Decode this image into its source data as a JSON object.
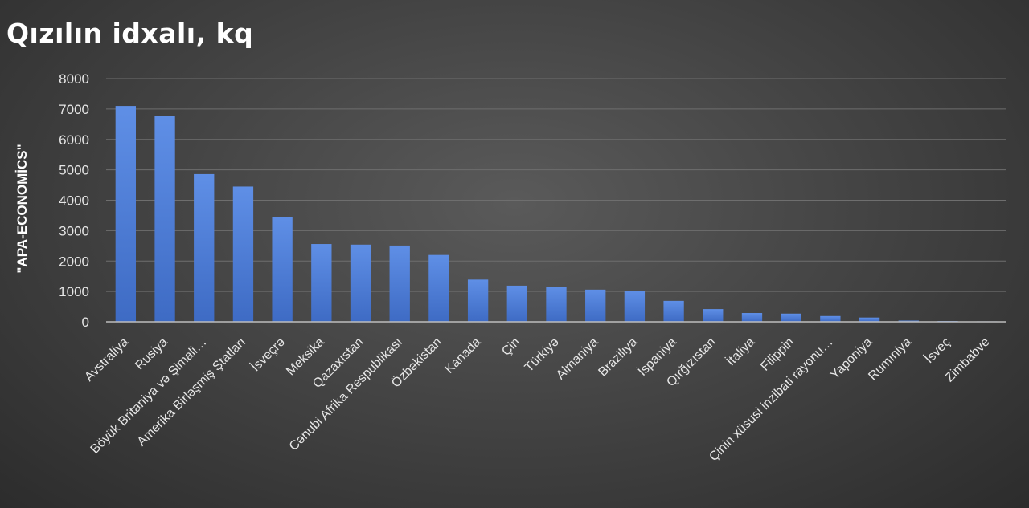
{
  "title": "Qızılın idxalı, kq",
  "chart_data": {
    "type": "bar",
    "title": "Qızılın idxalı, kq",
    "xlabel": "",
    "ylabel": "\"APA-ECONOMİCS\"",
    "ylim": [
      0,
      8000
    ],
    "yticks": [
      0,
      1000,
      2000,
      3000,
      4000,
      5000,
      6000,
      7000,
      8000
    ],
    "grid": true,
    "bar_color": "#4f7fd8",
    "categories": [
      "Avstraliya",
      "Rusiya",
      "Böyük Britaniya və Şimali…",
      "Amerika Birləşmiş Ştatları",
      "İsveçrə",
      "Meksika",
      "Qazaxıstan",
      "Cənubi Afrika Respublikası",
      "Özbəkistan",
      "Kanada",
      "Çin",
      "Türkiyə",
      "Almaniya",
      "Braziliya",
      "İspaniya",
      "Qırğızıstan",
      "İtaliya",
      "Filippin",
      "Çinin xüsusi inzibati rayonu…",
      "Yaponiya",
      "Rumıniya",
      "İsveç",
      "Zimbabve"
    ],
    "values": [
      7100,
      6780,
      4860,
      4450,
      3450,
      2560,
      2540,
      2510,
      2200,
      1390,
      1190,
      1160,
      1060,
      1010,
      690,
      420,
      290,
      270,
      190,
      140,
      40,
      25,
      15
    ]
  }
}
